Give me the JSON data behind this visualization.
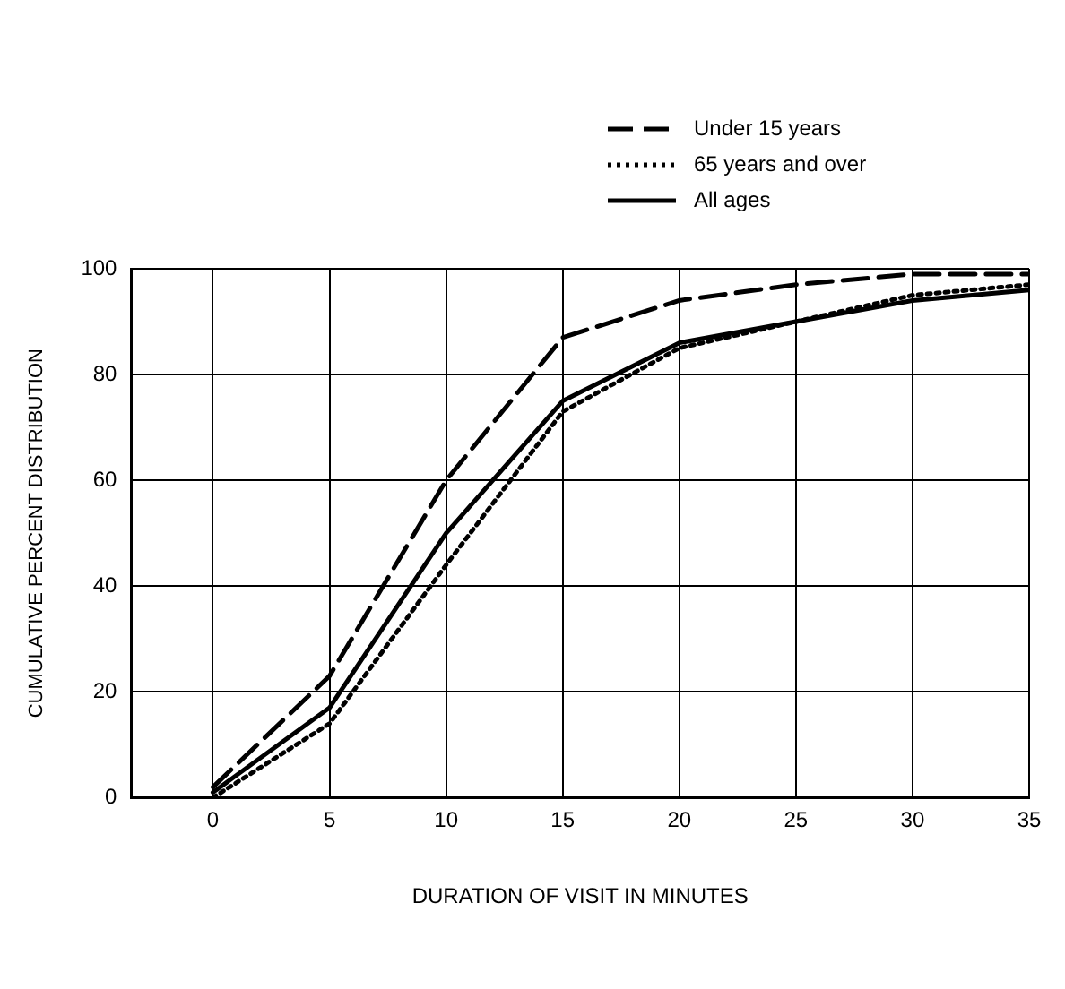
{
  "chart_data": {
    "type": "line",
    "xlabel": "DURATION OF VISIT IN MINUTES",
    "ylabel": "CUMULATIVE PERCENT DISTRIBUTION",
    "x": [
      0,
      5,
      10,
      15,
      20,
      25,
      30,
      35
    ],
    "series": [
      {
        "name": "Under 15 years",
        "color": "#000000",
        "line_style": "dashed",
        "values": [
          2,
          23,
          60,
          87,
          94,
          97,
          99,
          99
        ]
      },
      {
        "name": "65 years and over",
        "color": "#000000",
        "line_style": "dotted",
        "values": [
          0,
          14,
          44,
          73,
          85,
          90,
          95,
          97
        ]
      },
      {
        "name": "All ages",
        "color": "#000000",
        "line_style": "solid",
        "values": [
          1,
          17,
          50,
          75,
          86,
          90,
          94,
          96
        ]
      }
    ],
    "xlim": [
      -3.5,
      35
    ],
    "xticks": [
      0,
      5,
      10,
      15,
      20,
      25,
      30,
      35
    ],
    "ylim": [
      0,
      100
    ],
    "yticks": [
      0,
      20,
      40,
      60,
      80,
      100
    ],
    "grid": true,
    "legend": "top right",
    "marker": "none"
  }
}
